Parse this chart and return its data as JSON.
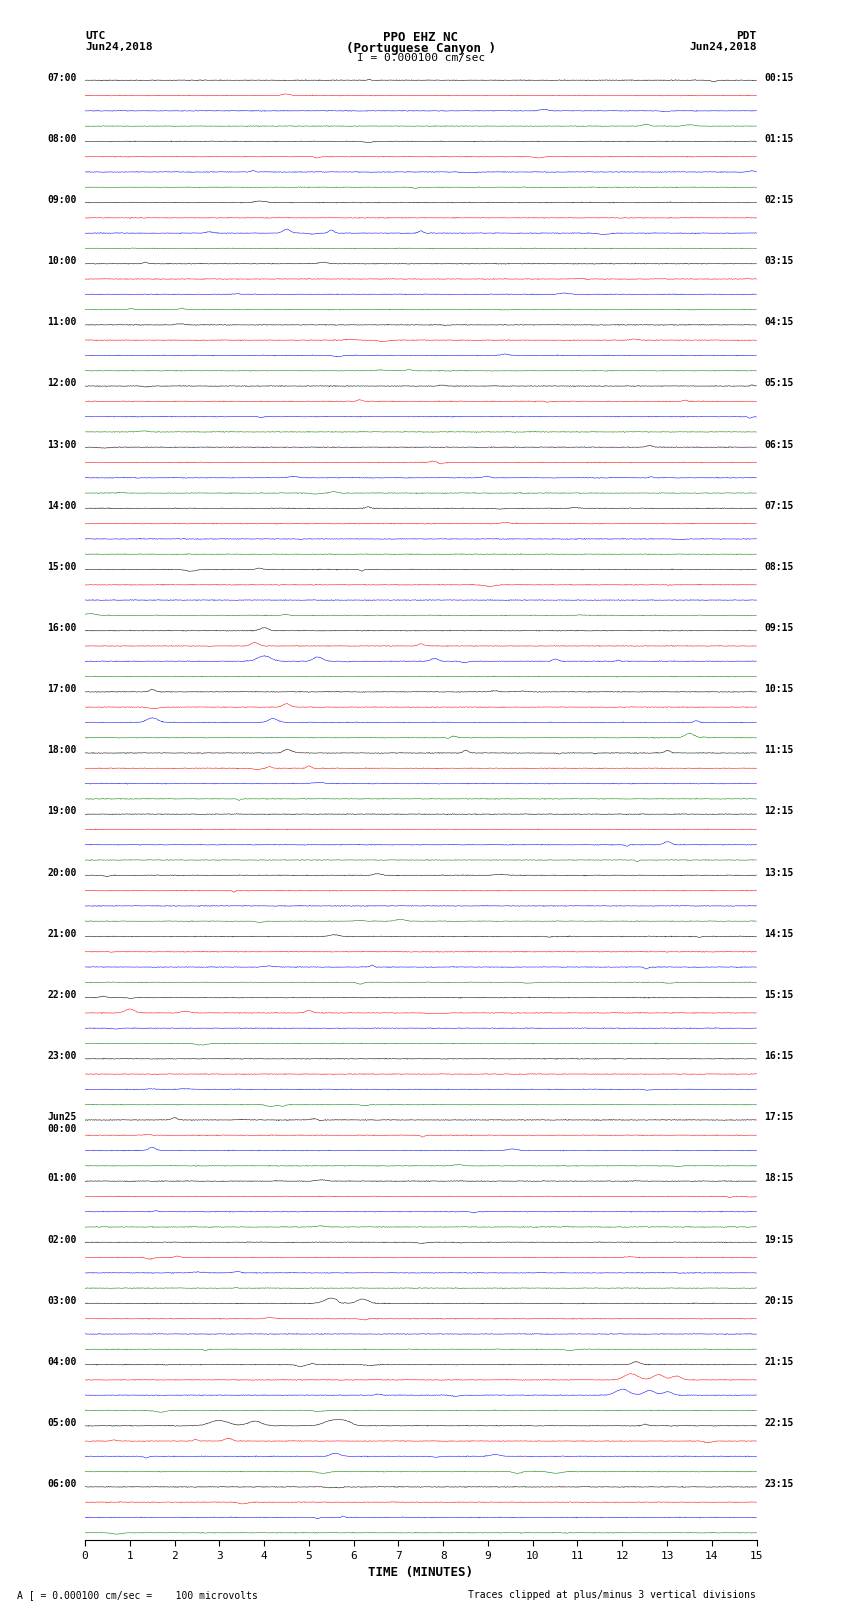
{
  "title_line1": "PPO EHZ NC",
  "title_line2": "(Portuguese Canyon )",
  "title_scale": "I = 0.000100 cm/sec",
  "left_label_top": "UTC",
  "left_label_date": "Jun24,2018",
  "right_label_top": "PDT",
  "right_label_date": "Jun24,2018",
  "bottom_label": "TIME (MINUTES)",
  "bottom_note": "A [ = 0.000100 cm/sec =    100 microvolts",
  "bottom_note2": "Traces clipped at plus/minus 3 vertical divisions",
  "utc_hour_labels": [
    "07:00",
    "08:00",
    "09:00",
    "10:00",
    "11:00",
    "12:00",
    "13:00",
    "14:00",
    "15:00",
    "16:00",
    "17:00",
    "18:00",
    "19:00",
    "20:00",
    "21:00",
    "22:00",
    "23:00",
    "Jun25\n00:00",
    "01:00",
    "02:00",
    "03:00",
    "04:00",
    "05:00",
    "06:00"
  ],
  "pdt_hour_labels": [
    "00:15",
    "01:15",
    "02:15",
    "03:15",
    "04:15",
    "05:15",
    "06:15",
    "07:15",
    "08:15",
    "09:15",
    "10:15",
    "11:15",
    "12:15",
    "13:15",
    "14:15",
    "15:15",
    "16:15",
    "17:15",
    "18:15",
    "19:15",
    "20:15",
    "21:15",
    "22:15",
    "23:15"
  ],
  "trace_colors": [
    "black",
    "red",
    "blue",
    "green"
  ],
  "n_hours": 24,
  "n_traces_per_hour": 4,
  "x_min": 0,
  "x_max": 15,
  "x_ticks": [
    0,
    1,
    2,
    3,
    4,
    5,
    6,
    7,
    8,
    9,
    10,
    11,
    12,
    13,
    14,
    15
  ],
  "background_color": "white",
  "noise_amplitude": 0.012,
  "random_seed": 42
}
